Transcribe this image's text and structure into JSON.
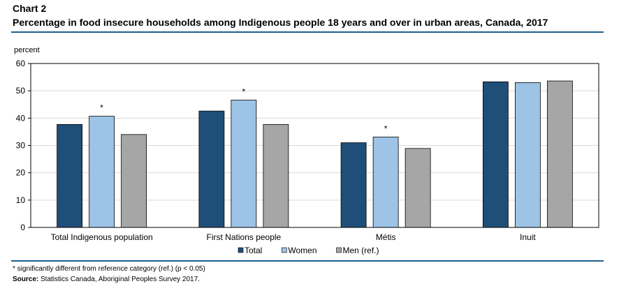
{
  "header": {
    "chart_label": "Chart 2",
    "title": "Percentage in food insecure households among Indigenous people 18 years and over in urban areas, Canada, 2017"
  },
  "footer": {
    "footnote": "* significantly different from reference category (ref.) (p < 0.05)",
    "source_label": "Source:",
    "source_text": " Statistics Canada, Aboriginal Peoples Survey 2017."
  },
  "colors": {
    "Total": "#1f4e79",
    "Women": "#9dc3e6",
    "Men (ref.)": "#a6a6a6",
    "rule": "#1f5f8b"
  },
  "chart_data": {
    "type": "bar",
    "title": "",
    "xlabel": "",
    "ylabel": "percent",
    "ylim": [
      0,
      60
    ],
    "yticks": [
      0,
      10,
      20,
      30,
      40,
      50,
      60
    ],
    "grid": true,
    "legend_position": "bottom",
    "categories": [
      "Total Indigenous population",
      "First Nations people",
      "Métis",
      "Inuit"
    ],
    "series": [
      {
        "name": "Total",
        "values": [
          37.7,
          42.6,
          31.0,
          53.3
        ]
      },
      {
        "name": "Women",
        "values": [
          40.7,
          46.6,
          33.1,
          53.0
        ]
      },
      {
        "name": "Men (ref.)",
        "values": [
          34.0,
          37.7,
          28.9,
          53.6
        ]
      }
    ],
    "significance_marker": "*",
    "significant": [
      [
        false,
        true,
        false
      ],
      [
        false,
        true,
        false
      ],
      [
        false,
        true,
        false
      ],
      [
        false,
        false,
        false
      ]
    ]
  }
}
